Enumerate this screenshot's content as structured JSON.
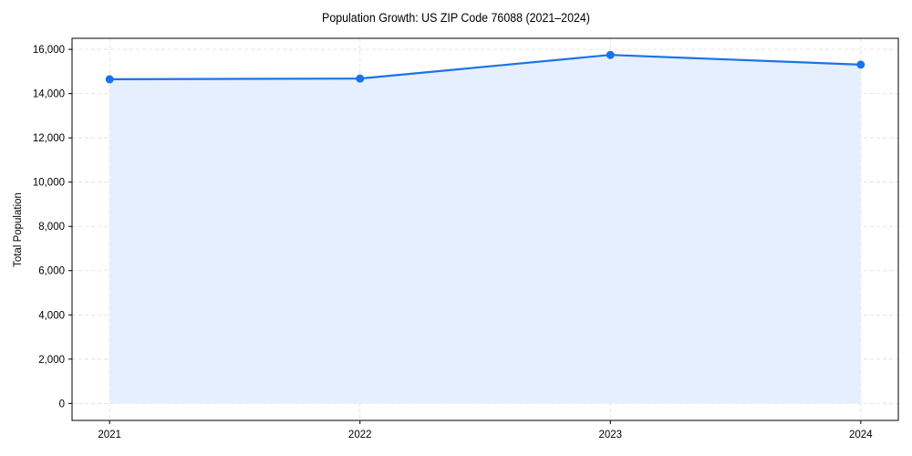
{
  "chart_data": {
    "type": "line",
    "title": "Population Growth: US ZIP Code 76088 (2021–2024)",
    "xlabel": "",
    "ylabel": "Total Population",
    "categories": [
      "2021",
      "2022",
      "2023",
      "2024"
    ],
    "x": [
      2021,
      2022,
      2023,
      2024
    ],
    "series": [
      {
        "name": "Total Population",
        "values": [
          14650,
          14680,
          15750,
          15310
        ],
        "color": "#1a73e8",
        "fill": "#e6effd",
        "marker": "circle",
        "area_fill": true
      }
    ],
    "ylim": [
      -770,
      16500
    ],
    "xlim": [
      2020.85,
      2024.15
    ],
    "yticks": [
      0,
      2000,
      4000,
      6000,
      8000,
      10000,
      12000,
      14000,
      16000
    ],
    "ytick_labels": [
      "0",
      "2,000",
      "4,000",
      "6,000",
      "8,000",
      "10,000",
      "12,000",
      "14,000",
      "16,000"
    ],
    "xticks": [
      2021,
      2022,
      2023,
      2024
    ],
    "xtick_labels": [
      "2021",
      "2022",
      "2023",
      "2024"
    ],
    "grid": true,
    "grid_style": "dashed",
    "legend": null
  },
  "colors": {
    "line": "#1a73e8",
    "fill": "#e6effd",
    "grid": "#dddddd",
    "axis": "#000000"
  }
}
